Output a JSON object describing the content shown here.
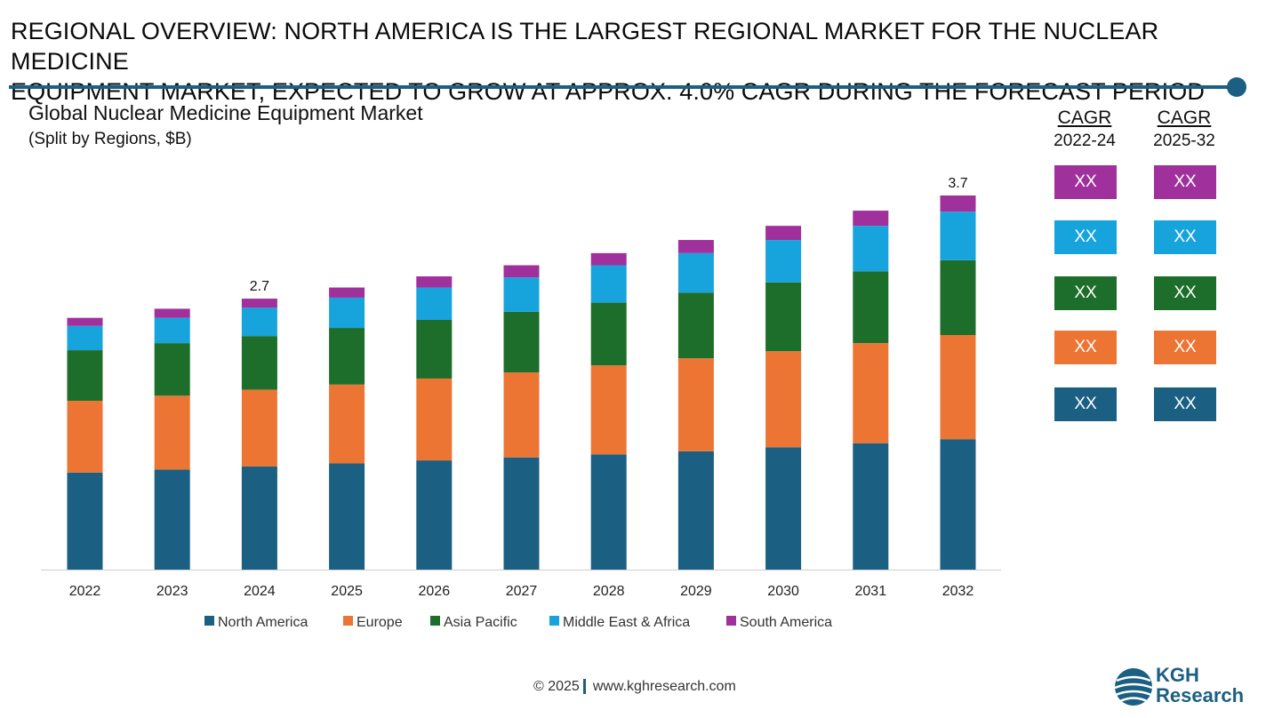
{
  "header": {
    "line1": "REGIONAL OVERVIEW: NORTH AMERICA IS THE LARGEST REGIONAL MARKET FOR THE NUCLEAR MEDICINE",
    "line2": "EQUIPMENT MARKET, EXPECTED TO GROW AT APPROX. 4.0% CAGR DURING THE FORECAST PERIOD"
  },
  "chart_data": {
    "type": "bar",
    "stacked": true,
    "title": "Global Nuclear Medicine Equipment Market",
    "subtitle": "(Split by Regions, $B)",
    "categories": [
      "2022",
      "2023",
      "2024",
      "2025",
      "2026",
      "2027",
      "2028",
      "2029",
      "2030",
      "2031",
      "2032"
    ],
    "series": [
      {
        "name": "North America",
        "color": "#1b5f82",
        "values": [
          0.96,
          0.99,
          1.02,
          1.05,
          1.08,
          1.11,
          1.14,
          1.17,
          1.21,
          1.25,
          1.29
        ]
      },
      {
        "name": "Europe",
        "color": "#ec7534",
        "values": [
          0.71,
          0.73,
          0.76,
          0.78,
          0.81,
          0.84,
          0.88,
          0.92,
          0.95,
          0.99,
          1.03
        ]
      },
      {
        "name": "Asia Pacific",
        "color": "#1c6e2a",
        "values": [
          0.5,
          0.52,
          0.53,
          0.56,
          0.58,
          0.6,
          0.62,
          0.65,
          0.68,
          0.71,
          0.74
        ]
      },
      {
        "name": "Middle East & Africa",
        "color": "#17a3dc",
        "values": [
          0.24,
          0.25,
          0.28,
          0.3,
          0.32,
          0.34,
          0.37,
          0.39,
          0.42,
          0.45,
          0.48
        ]
      },
      {
        "name": "South America",
        "color": "#a0309b",
        "values": [
          0.08,
          0.09,
          0.09,
          0.1,
          0.11,
          0.12,
          0.12,
          0.13,
          0.14,
          0.15,
          0.16
        ]
      }
    ],
    "data_labels": [
      {
        "category": "2024",
        "text": "2.7"
      },
      {
        "category": "2032",
        "text": "3.7"
      }
    ],
    "ylim": [
      0,
      4.0
    ],
    "grid": false,
    "legend": "bottom"
  },
  "cagr": {
    "col1": {
      "title": "CAGR",
      "period": "2022-24"
    },
    "col2": {
      "title": "CAGR",
      "period": "2025-32"
    },
    "rows": [
      {
        "color": "#a0309b",
        "v1": "XX",
        "v2": "XX"
      },
      {
        "color": "#17a3dc",
        "v1": "XX",
        "v2": "XX"
      },
      {
        "color": "#1c6e2a",
        "v1": "XX",
        "v2": "XX"
      },
      {
        "color": "#ec7534",
        "v1": "XX",
        "v2": "XX"
      },
      {
        "color": "#1b5f82",
        "v1": "XX",
        "v2": "XX"
      }
    ]
  },
  "footer": {
    "copyright": "© 2025",
    "url": "www.kghresearch.com"
  },
  "logo": {
    "line1": "KGH",
    "line2": "Research"
  }
}
